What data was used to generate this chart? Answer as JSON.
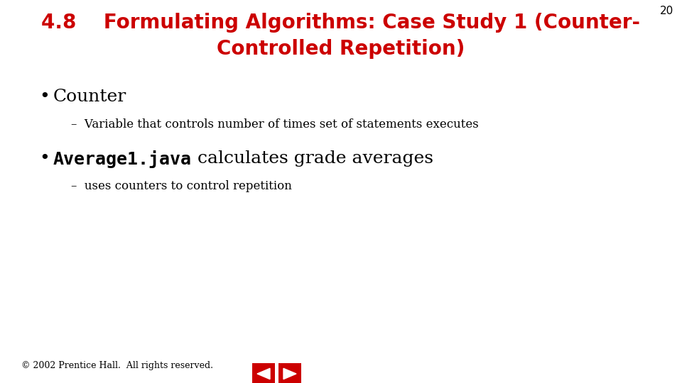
{
  "bg_color": "#ffffff",
  "title_number": "4.8",
  "title_text": "Formulating Algorithms: Case Study 1 (Counter-\nControlled Repetition)",
  "title_color": "#cc0000",
  "title_fontsize": 20,
  "page_number": "20",
  "page_number_color": "#000000",
  "page_number_fontsize": 11,
  "bullet1_text": "Counter",
  "bullet1_fontsize": 18,
  "sub1_text": "–  Variable that controls number of times set of statements executes",
  "sub1_fontsize": 12,
  "bullet2_code": "Average1.java",
  "bullet2_rest": " calculates grade averages",
  "bullet2_fontsize": 18,
  "sub2_text": "–  uses counters to control repetition",
  "sub2_fontsize": 12,
  "copyright_text": "© 2002 Prentice Hall.  All rights reserved.",
  "copyright_fontsize": 9,
  "nav_color": "#cc0000",
  "bullet_color": "#000000",
  "text_color": "#000000",
  "fig_width": 9.6,
  "fig_height": 5.4,
  "dpi": 100
}
